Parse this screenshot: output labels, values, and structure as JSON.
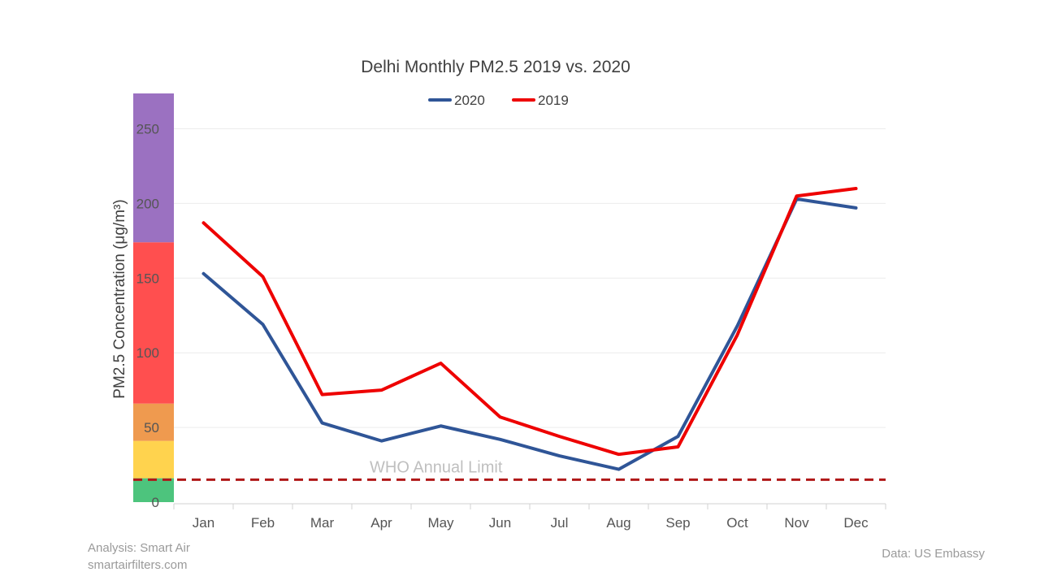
{
  "chart_data": {
    "type": "line",
    "title": "Delhi Monthly PM2.5 2019 vs. 2020",
    "ylabel": "PM2.5 Concentration (μg/m³)",
    "xlabel": "",
    "ylim": [
      0,
      270
    ],
    "yticks": [
      0,
      50,
      100,
      150,
      200,
      250
    ],
    "categories": [
      "Jan",
      "Feb",
      "Mar",
      "Apr",
      "May",
      "Jun",
      "Jul",
      "Aug",
      "Sep",
      "Oct",
      "Nov",
      "Dec"
    ],
    "series": [
      {
        "name": "2020",
        "color": "#2f5597",
        "values": [
          153,
          119,
          53,
          41,
          51,
          42,
          31,
          22,
          44,
          118,
          203,
          197
        ]
      },
      {
        "name": "2019",
        "color": "#ee0000",
        "values": [
          187,
          151,
          72,
          75,
          93,
          57,
          44,
          32,
          37,
          112,
          205,
          210
        ]
      }
    ],
    "legend_position": "top-center",
    "grid": true,
    "reference_line": {
      "label": "WHO Annual Limit",
      "value": 15,
      "color": "#b01717",
      "style": "dashed"
    },
    "aqi_bands": [
      {
        "from": 0,
        "to": 16,
        "color": "#4dc47d"
      },
      {
        "from": 16,
        "to": 41,
        "color": "#ffd34e"
      },
      {
        "from": 41,
        "to": 66,
        "color": "#ef9a4f"
      },
      {
        "from": 66,
        "to": 174,
        "color": "#ff4f4f"
      },
      {
        "from": 174,
        "to": 275,
        "color": "#9b71c1"
      }
    ]
  },
  "footer": {
    "analysis": "Analysis: Smart Air",
    "website": "smartairfilters.com",
    "source": "Data: US Embassy"
  }
}
